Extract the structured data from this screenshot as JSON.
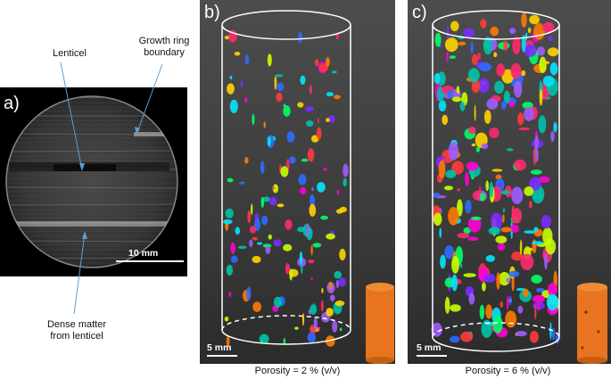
{
  "figure": {
    "panel_a": {
      "letter": "a)",
      "labels": {
        "lenticel": "Lenticel",
        "growth_ring": "Growth ring boundary",
        "dense_matter": "Dense matter from lenticel"
      },
      "scale_bar": "10 mm"
    },
    "panel_b": {
      "letter": "b)",
      "scale_bar": "5 mm",
      "caption": "Porosity = 2 % (v/v)"
    },
    "panel_c": {
      "letter": "c)",
      "scale_bar": "5 mm",
      "caption": "Porosity = 6 % (v/v)"
    },
    "colors": {
      "background_3d": "#3d3d3d",
      "sample_orange": "#e8741f",
      "cylinder_outline": "#ffffff"
    }
  }
}
